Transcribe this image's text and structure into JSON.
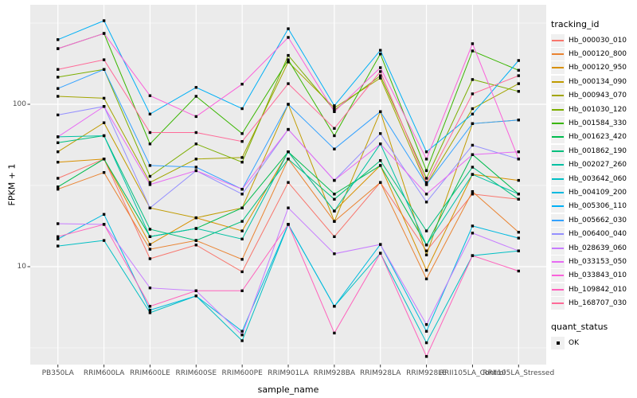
{
  "panel": {
    "bg": "#EBEBEB",
    "grid_color": "#FFFFFF",
    "tick_color": "#333333",
    "point_color": "#000000"
  },
  "axes": {
    "x_title": "sample_name",
    "y_title": "FPKM + 1"
  },
  "legend": {
    "tracking_title": "tracking_id",
    "quant_title": "quant_status",
    "quant_items": [
      {
        "label": "OK"
      }
    ]
  },
  "chart_data": {
    "type": "line",
    "title": "",
    "xlabel": "sample_name",
    "ylabel": "FPKM + 1",
    "y_scale": "log10",
    "ylim": [
      2.5,
      400
    ],
    "grid": "white major/minor on gray panel",
    "legend_position": "right",
    "point_shape": "filled-square",
    "y_major_ticks": [
      {
        "value": 100,
        "label": "100"
      },
      {
        "value": 10,
        "label": "10"
      }
    ],
    "y_minor_ticks": [
      3.1623,
      31.623,
      316.23
    ],
    "categories": [
      "PB350LA",
      "RRIM600LA",
      "RRIM600LE",
      "RRIM600SE",
      "RRIM600PE",
      "RRIM901LA",
      "RRIM928BA",
      "RRIM928LA",
      "RRIM928LE",
      "RRII105LA_Control",
      "RRII105LA_Stressed"
    ],
    "series": [
      {
        "name": "Hb_000030_010",
        "color": "#F8766D",
        "values": [
          35,
          46,
          11.2,
          13.6,
          9.3,
          33,
          15.3,
          33,
          12.5,
          28,
          26
        ]
      },
      {
        "name": "Hb_000120_800",
        "color": "#EA8331",
        "values": [
          30,
          38,
          12.8,
          14.5,
          11.1,
          46,
          19,
          33,
          8.4,
          29,
          16.3
        ]
      },
      {
        "name": "Hb_000120_950",
        "color": "#D89000",
        "values": [
          44,
          46,
          13.7,
          20,
          16.6,
          51,
          22,
          42,
          9.5,
          37,
          34
        ]
      },
      {
        "name": "Hb_000134_090",
        "color": "#C09B00",
        "values": [
          51,
          77,
          23,
          20,
          23,
          100,
          19,
          90,
          11.8,
          76,
          80
        ]
      },
      {
        "name": "Hb_000943_070",
        "color": "#A3A500",
        "values": [
          112,
          109,
          33,
          46,
          47,
          182,
          95,
          145,
          32,
          94,
          134
        ]
      },
      {
        "name": "Hb_001030_120",
        "color": "#7CAE00",
        "values": [
          147,
          164,
          36,
          57,
          44,
          200,
          92,
          150,
          35,
          142,
          120
        ]
      },
      {
        "name": "Hb_001584_330",
        "color": "#39B600",
        "values": [
          220,
          273,
          57,
          112,
          66,
          188,
          64,
          204,
          39,
          213,
          162
        ]
      },
      {
        "name": "Hb_001623_420",
        "color": "#00BB4E",
        "values": [
          31,
          46,
          15.3,
          17.2,
          23,
          51,
          28,
          42,
          13.6,
          49,
          28
        ]
      },
      {
        "name": "Hb_001862_190",
        "color": "#00BF7D",
        "values": [
          58,
          64,
          17,
          14.5,
          19,
          46,
          26,
          45,
          16.6,
          41,
          26
        ]
      },
      {
        "name": "Hb_002027_260",
        "color": "#00C1A3",
        "values": [
          63,
          64,
          15.3,
          17.2,
          14.8,
          51,
          22,
          57,
          13.6,
          37,
          28
        ]
      },
      {
        "name": "Hb_003642_060",
        "color": "#00BFC4",
        "values": [
          13.4,
          14.5,
          5.2,
          6.6,
          3.5,
          18.2,
          5.7,
          12.1,
          3.4,
          11.7,
          12.5
        ]
      },
      {
        "name": "Hb_004109_200",
        "color": "#00BAE0",
        "values": [
          14.8,
          21,
          5.4,
          6.6,
          4.0,
          18.2,
          5.7,
          13.7,
          4.0,
          17.8,
          15.0
        ]
      },
      {
        "name": "Hb_005306_110",
        "color": "#00B0F6",
        "values": [
          250,
          327,
          87,
          127,
          94,
          292,
          98,
          215,
          51,
          87,
          186
        ]
      },
      {
        "name": "Hb_005662_030",
        "color": "#35A2FF",
        "values": [
          125,
          164,
          42,
          41,
          30,
          100,
          53,
          90,
          32,
          76,
          80
        ]
      },
      {
        "name": "Hb_006400_040",
        "color": "#9590FF",
        "values": [
          86,
          97,
          23,
          39,
          28,
          70,
          34,
          66,
          25,
          56,
          46
        ]
      },
      {
        "name": "Hb_028639_060",
        "color": "#C77CFF",
        "values": [
          18.4,
          18.2,
          7.4,
          7.1,
          3.8,
          23,
          12,
          13.7,
          4.4,
          16.1,
          12.5
        ]
      },
      {
        "name": "Hb_033153_050",
        "color": "#E76BF3",
        "values": [
          63,
          97,
          32,
          39,
          30,
          70,
          34,
          57,
          28,
          49,
          51
        ]
      },
      {
        "name": "Hb_033843_010",
        "color": "#FA62DB",
        "values": [
          220,
          273,
          113,
          84,
          133,
          258,
          90,
          168,
          46,
          236,
          46
        ]
      },
      {
        "name": "Hb_109842_010",
        "color": "#FF62BC",
        "values": [
          15.3,
          18.2,
          5.7,
          7.1,
          7.1,
          18.2,
          3.9,
          12.1,
          2.8,
          11.7,
          9.4
        ]
      },
      {
        "name": "Hb_168707_030",
        "color": "#FF6A98",
        "values": [
          164,
          188,
          67,
          67,
          59,
          134,
          71,
          159,
          33,
          116,
          150
        ]
      }
    ]
  }
}
